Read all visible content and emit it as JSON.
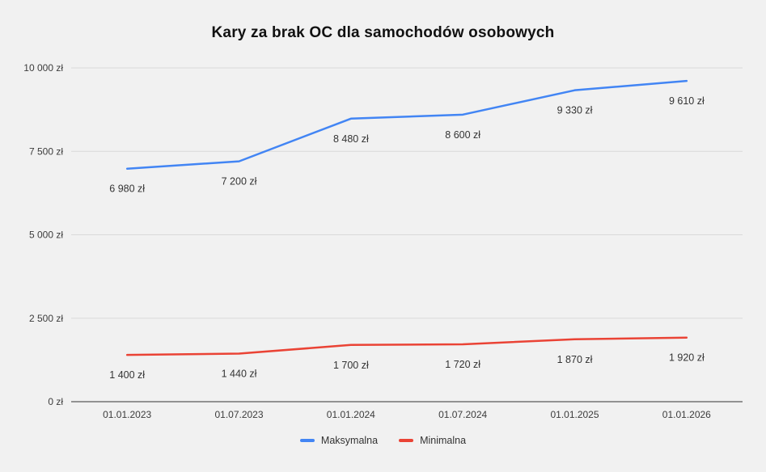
{
  "chart_data": {
    "type": "line",
    "title": "Kary za brak OC dla samochodów osobowych",
    "categories": [
      "01.01.2023",
      "01.07.2023",
      "01.01.2024",
      "01.07.2024",
      "01.01.2025",
      "01.01.2026"
    ],
    "series": [
      {
        "name": "Maksymalna",
        "color": "#4285f4",
        "values": [
          6980,
          7200,
          8480,
          8600,
          9330,
          9610
        ],
        "labels": [
          "6 980 zł",
          "7 200 zł",
          "8 480 zł",
          "8 600 zł",
          "9 330 zł",
          "9 610 zł"
        ]
      },
      {
        "name": "Minimalna",
        "color": "#ea4335",
        "values": [
          1400,
          1440,
          1700,
          1720,
          1870,
          1920
        ],
        "labels": [
          "1 400 zł",
          "1 440 zł",
          "1 700 zł",
          "1 720 zł",
          "1 870 zł",
          "1 920 zł"
        ]
      }
    ],
    "y_ticks": [
      {
        "value": 0,
        "label": "0 zł"
      },
      {
        "value": 2500,
        "label": "2 500 zł"
      },
      {
        "value": 5000,
        "label": "5 000 zł"
      },
      {
        "value": 7500,
        "label": "7 500 zł"
      },
      {
        "value": 10000,
        "label": "10 000 zł"
      }
    ],
    "ylim": [
      0,
      10000
    ],
    "grid": true,
    "legend_position": "bottom",
    "background": "#f1f1f1",
    "axis_color": "#333333",
    "gridline_color": "#d9d9d9"
  }
}
